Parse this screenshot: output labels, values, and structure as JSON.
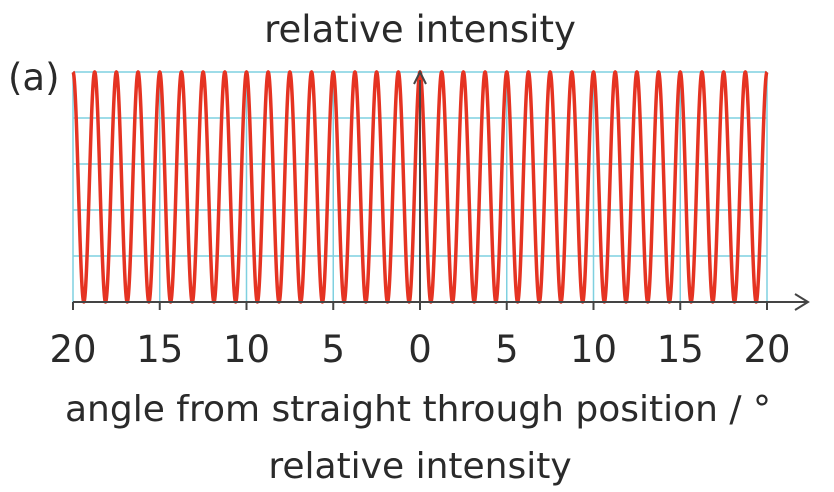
{
  "chart_data": {
    "type": "line",
    "panel_label": "(a)",
    "title": "relative intensity",
    "xlabel": "angle from straight through position / °",
    "bottom_caption": "relative intensity",
    "x_tick_labels": [
      "20",
      "15",
      "10",
      "5",
      "0",
      "5",
      "10",
      "15",
      "20"
    ],
    "x_tick_values": [
      -20,
      -15,
      -10,
      -5,
      0,
      5,
      10,
      15,
      20
    ],
    "xlim": [
      -20,
      20
    ],
    "ylim": [
      0,
      1
    ],
    "grid": true,
    "series": [
      {
        "function": "relative_intensity = cos^2(pi * angle / 1.25)",
        "fringe_spacing_deg": 1.25,
        "x_range": [
          -20,
          20
        ],
        "max": 1,
        "min": 0
      }
    ],
    "colors": {
      "curve": "#e53322",
      "grid": "#7fd0e0",
      "axis": "#444444"
    }
  }
}
